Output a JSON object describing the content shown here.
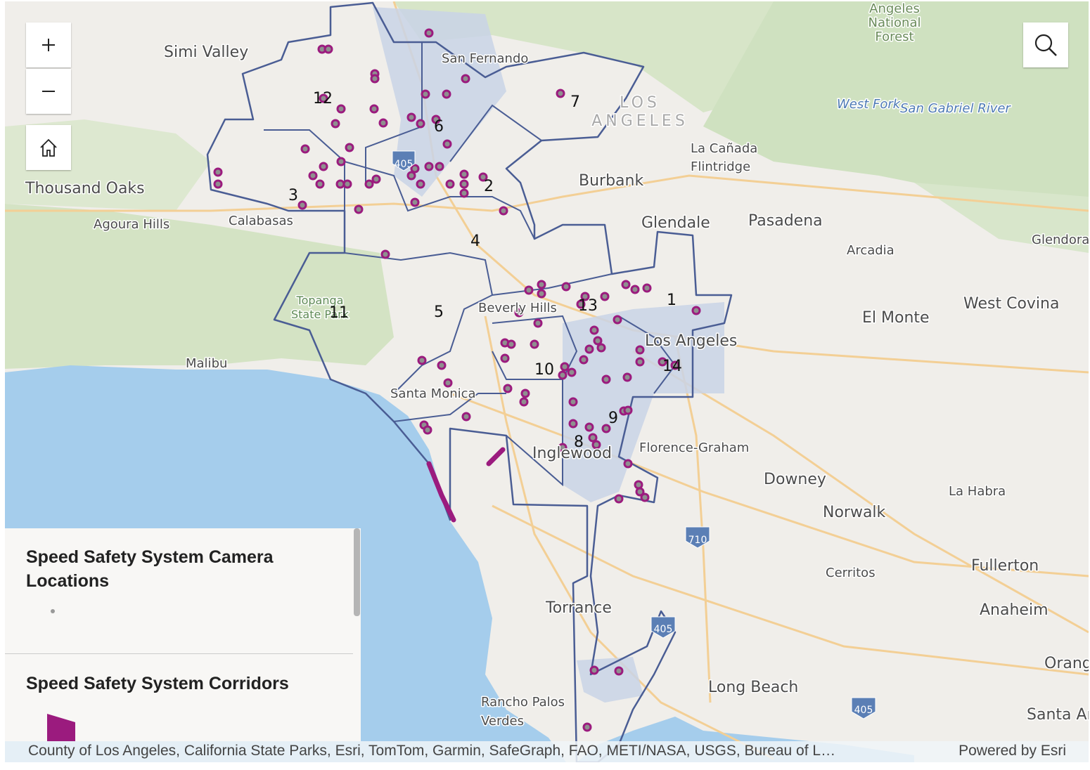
{
  "places": [
    "Simi Valley",
    "San Fernando",
    [
      "Angeles",
      "National",
      "Forest"
    ],
    "West Fork",
    "San Gabriel River",
    [
      "LOS",
      "ANGELES"
    ],
    [
      "La Cañada",
      "Flintridge"
    ],
    "Burbank",
    "Thousand Oaks",
    "Agoura Hills",
    "Calabasas",
    "Glendale",
    "Pasadena",
    "Arcadia",
    "Glendora",
    [
      "Topanga",
      "State Park"
    ],
    "Beverly Hills",
    "West Covina",
    "El Monte",
    "Los Angeles",
    "Malibu",
    "Santa Monica",
    "Inglewood",
    "Florence-Graham",
    "Downey",
    "La Habra",
    "Norwalk",
    "Cerritos",
    "Fullerton",
    "Anaheim",
    "Torrance",
    "Orange",
    "Long Beach",
    [
      "Rancho Palos",
      "Verdes"
    ],
    "Santa Ana"
  ],
  "highways": [
    "405",
    "710",
    "405",
    "405"
  ],
  "districts": [
    "12",
    "6",
    "7",
    "2",
    "3",
    "4",
    "5",
    "11",
    "13",
    "1",
    "10",
    "14",
    "9",
    "8"
  ],
  "legend": {
    "items": [
      "Speed Safety System Camera Locations",
      "Speed Safety System Corridors"
    ]
  },
  "attribution": {
    "sources": "County of Los Angeles, California State Parks, Esri, TomTom, Garmin, SafeGraph, FAO, METI/NASA, USGS, Bureau of L…",
    "powered_by": "Powered by Esri"
  }
}
